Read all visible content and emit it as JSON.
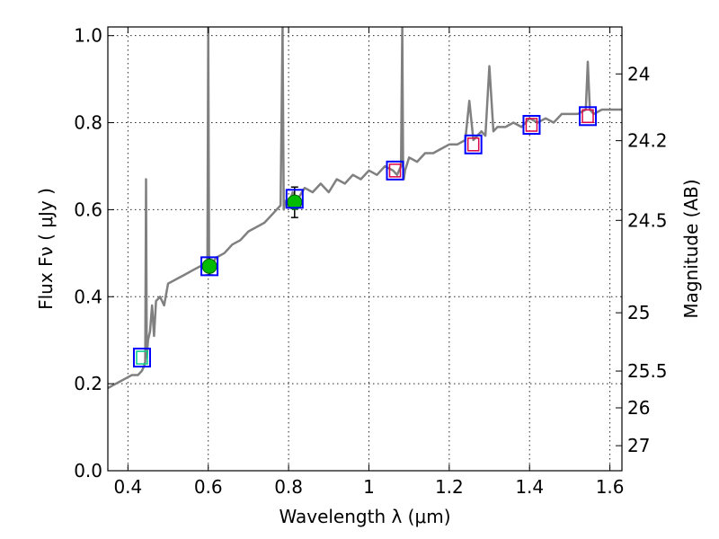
{
  "chart_data": {
    "type": "line",
    "title": "",
    "xlabel": "Wavelength  λ (μm)",
    "ylabel": "Flux  Fν  ( μJy )",
    "y2label": "Magnitude (AB)",
    "xlim": [
      0.35,
      1.63
    ],
    "ylim": [
      0.0,
      1.02
    ],
    "grid": true,
    "x_ticks": [
      0.4,
      0.6,
      0.8,
      1.0,
      1.2,
      1.4,
      1.6
    ],
    "x_tick_labels": [
      "0.4",
      "0.6",
      "0.8",
      "1",
      "1.2",
      "1.4",
      "1.6"
    ],
    "y_ticks": [
      0.0,
      0.2,
      0.4,
      0.6,
      0.8,
      1.0
    ],
    "y_tick_labels": [
      "0.0",
      "0.2",
      "0.4",
      "0.6",
      "0.8",
      "1.0"
    ],
    "mag_ticks": [
      24,
      24.2,
      24.5,
      25,
      25.5,
      26,
      27
    ],
    "mag_tick_labels": [
      "24",
      "24.2",
      "24.5",
      "25",
      "25.5",
      "26",
      "27"
    ],
    "colors": {
      "spectrum": "#808080",
      "model_box": "#0000ff",
      "observed_box": "#dd0044",
      "observed_box_blue": "#00cc88",
      "detection_point": "#00bb00",
      "errorbar": "#000000"
    },
    "series": [
      {
        "kind": "spectrum",
        "x": [
          0.35,
          0.37,
          0.39,
          0.41,
          0.425,
          0.435,
          0.44,
          0.443,
          0.445,
          0.447,
          0.45,
          0.455,
          0.46,
          0.465,
          0.47,
          0.48,
          0.49,
          0.5,
          0.52,
          0.54,
          0.56,
          0.58,
          0.59,
          0.598,
          0.6,
          0.602,
          0.605,
          0.62,
          0.64,
          0.66,
          0.68,
          0.7,
          0.72,
          0.74,
          0.76,
          0.78,
          0.785,
          0.788,
          0.792,
          0.8,
          0.81,
          0.82,
          0.84,
          0.86,
          0.88,
          0.9,
          0.92,
          0.94,
          0.96,
          0.98,
          1.0,
          1.02,
          1.04,
          1.06,
          1.07,
          1.08,
          1.083,
          1.085,
          1.087,
          1.09,
          1.1,
          1.12,
          1.14,
          1.16,
          1.18,
          1.2,
          1.22,
          1.24,
          1.25,
          1.26,
          1.28,
          1.29,
          1.3,
          1.31,
          1.32,
          1.34,
          1.36,
          1.38,
          1.4,
          1.42,
          1.44,
          1.46,
          1.48,
          1.5,
          1.52,
          1.54,
          1.545,
          1.55,
          1.56,
          1.58,
          1.6,
          1.63
        ],
        "y": [
          0.19,
          0.2,
          0.21,
          0.22,
          0.22,
          0.23,
          0.24,
          0.25,
          0.67,
          0.26,
          0.3,
          0.32,
          0.38,
          0.31,
          0.39,
          0.4,
          0.38,
          0.43,
          0.44,
          0.45,
          0.46,
          0.47,
          0.47,
          0.48,
          1.02,
          0.49,
          0.47,
          0.49,
          0.5,
          0.52,
          0.53,
          0.55,
          0.56,
          0.57,
          0.59,
          0.61,
          1.02,
          0.6,
          0.62,
          0.61,
          0.64,
          0.62,
          0.65,
          0.64,
          0.66,
          0.64,
          0.67,
          0.66,
          0.68,
          0.67,
          0.69,
          0.68,
          0.7,
          0.69,
          0.68,
          0.7,
          1.02,
          0.7,
          0.67,
          0.69,
          0.72,
          0.71,
          0.73,
          0.73,
          0.74,
          0.75,
          0.75,
          0.76,
          0.85,
          0.76,
          0.78,
          0.77,
          0.93,
          0.78,
          0.79,
          0.79,
          0.8,
          0.79,
          0.81,
          0.8,
          0.81,
          0.8,
          0.82,
          0.82,
          0.82,
          0.83,
          0.94,
          0.83,
          0.82,
          0.83,
          0.83,
          0.83
        ]
      },
      {
        "kind": "model_boxes",
        "x": [
          0.435,
          0.603,
          0.815,
          1.065,
          1.26,
          1.405,
          1.545
        ],
        "y": [
          0.26,
          0.47,
          0.625,
          0.69,
          0.75,
          0.795,
          0.815
        ]
      },
      {
        "kind": "observed_boxes",
        "x": [
          0.435,
          1.065,
          1.26,
          1.405,
          1.545
        ],
        "y": [
          0.26,
          0.69,
          0.75,
          0.795,
          0.815
        ]
      },
      {
        "kind": "detections",
        "x": [
          0.603,
          0.815
        ],
        "y": [
          0.47,
          0.617
        ],
        "yerr": [
          0.02,
          0.035
        ]
      }
    ]
  }
}
